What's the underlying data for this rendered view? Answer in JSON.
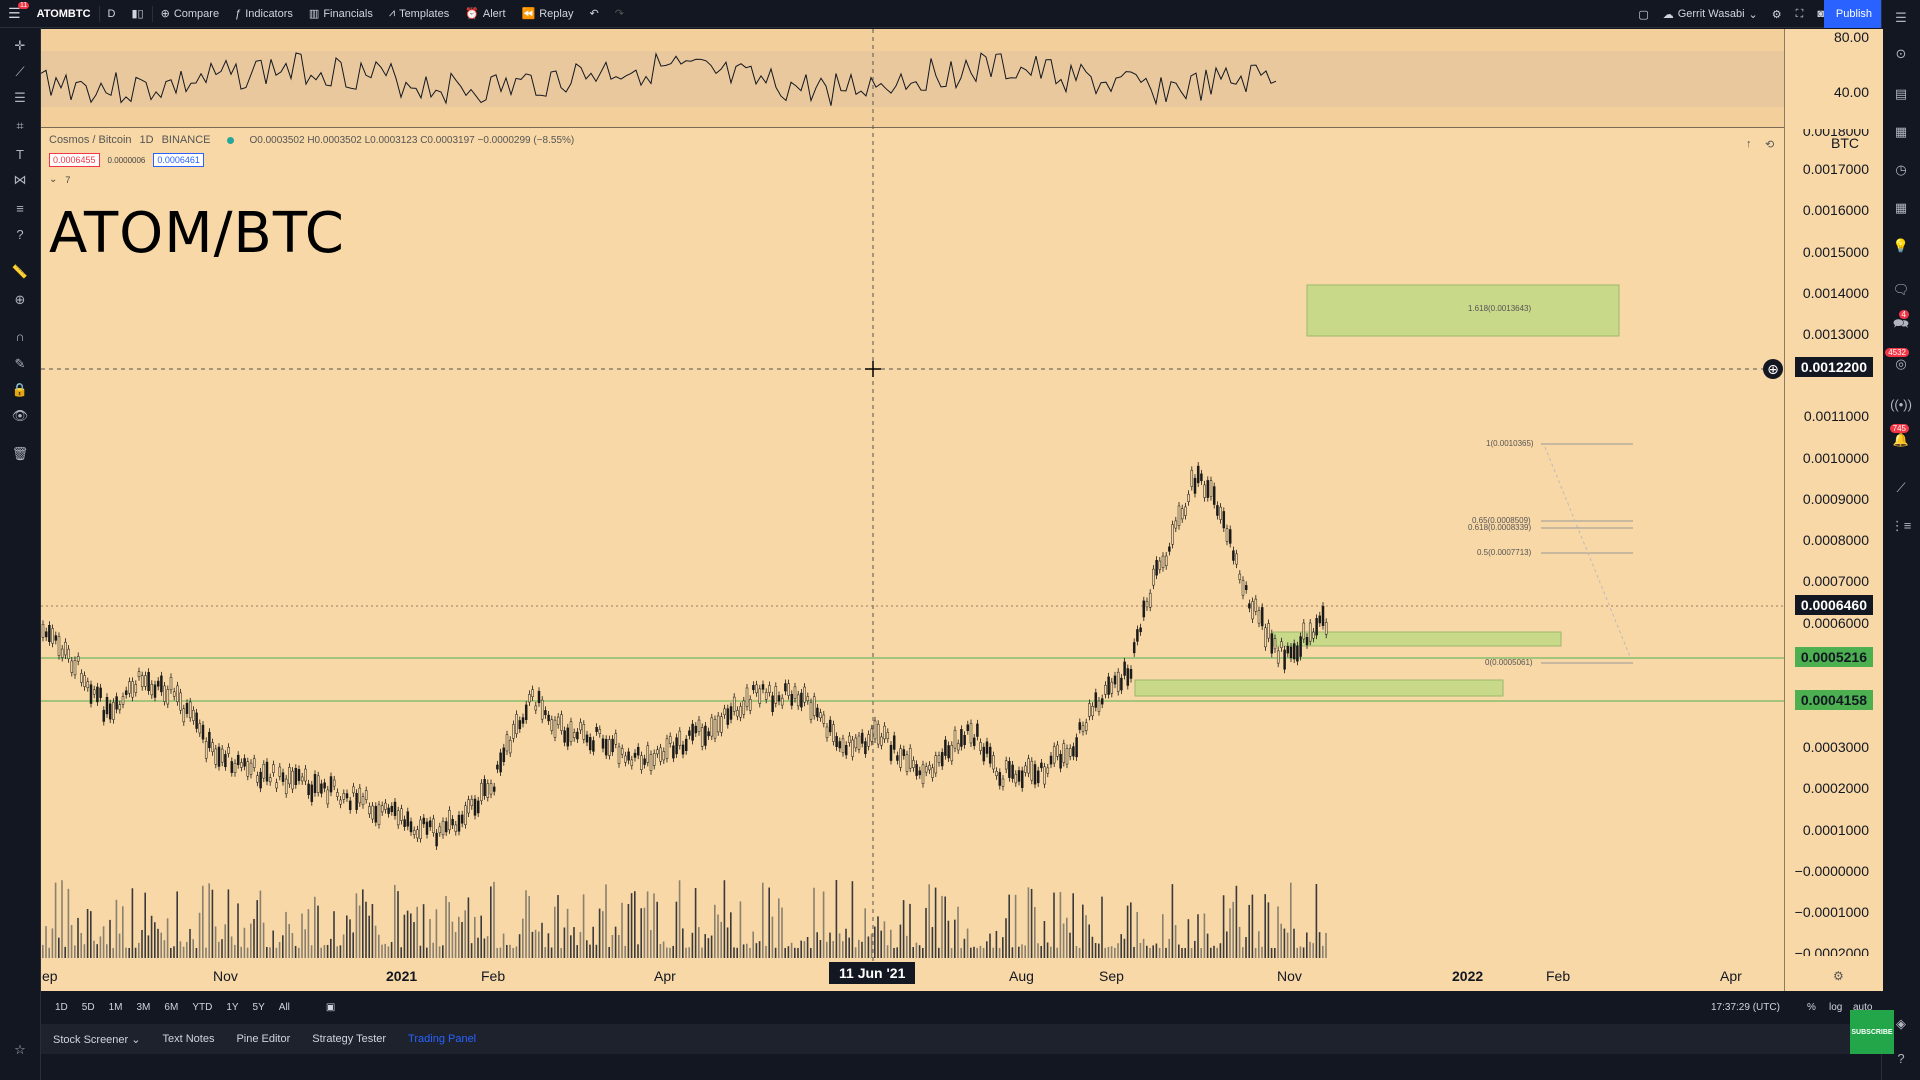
{
  "topbar": {
    "symbol": "ATOMBTC",
    "interval": "D",
    "compare": "Compare",
    "indicators": "Indicators",
    "financials": "Financials",
    "templates": "Templates",
    "alert": "Alert",
    "replay": "Replay",
    "user": "Gerrit Wasabi",
    "publish": "Publish",
    "menu_badge": "11"
  },
  "legend": {
    "name": "Cosmos / Bitcoin",
    "timeframe": "1D",
    "exchange": "BINANCE",
    "ohlc": "O0.0003502 H0.0003502 L0.0003123 C0.0003197 −0.0000299 (−8.55%)",
    "sell_price": "0.0006455",
    "spread": "0.0000006",
    "buy_price": "0.0006461",
    "indicators_count": "7"
  },
  "chart_title": "ATOM/BTC",
  "oscillator_axis": [
    "80.00",
    "40.00"
  ],
  "price_axis": {
    "currency": "BTC",
    "ticks": [
      "0.0017000",
      "0.0016000",
      "0.0015000",
      "0.0014000",
      "0.0013000",
      "0.0011000",
      "0.0010000",
      "0.0009000",
      "0.0008000",
      "0.0007000",
      "0.0006000",
      "0.0003000",
      "0.0002000",
      "0.0001000",
      "−0.0000000",
      "−0.0001000",
      "−0.0002000"
    ],
    "cursor_price": "0.0012200",
    "last_price": "0.0006460",
    "line1_price": "0.0005216",
    "line2_price": "0.0004158",
    "partial_top": "0.0018000"
  },
  "fib_levels": [
    "1.618(0.0013643)",
    "1(0.0010365)",
    "0.65(0.0008509)",
    "0.618(0.0008339)",
    "0.5(0.0007713)",
    "0(0.0005061)"
  ],
  "time_axis": [
    "ep",
    "Nov",
    "2021",
    "Feb",
    "Apr",
    "11 Jun '21",
    "Aug",
    "Sep",
    "Nov",
    "2022",
    "Feb",
    "Apr"
  ],
  "ranges": [
    "1D",
    "5D",
    "1M",
    "3M",
    "6M",
    "YTD",
    "1Y",
    "5Y",
    "All"
  ],
  "clock": "17:37:29 (UTC)",
  "axis_opts": [
    "%",
    "log",
    "auto"
  ],
  "panels": [
    "Stock Screener",
    "Text Notes",
    "Pine Editor",
    "Strategy Tester",
    "Trading Panel"
  ],
  "right_badges": [
    "4",
    "4532",
    "745"
  ],
  "subscribe": "SUBSCRIBE"
}
